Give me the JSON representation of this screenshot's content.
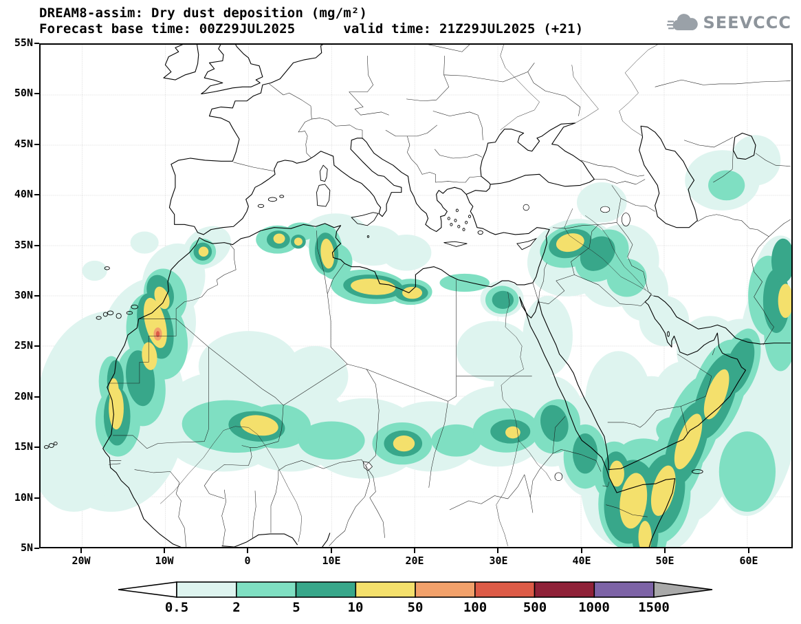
{
  "header": {
    "title": "DREAM8-assim: Dry dust deposition (mg/m²)",
    "subtitle": "Forecast base time: 00Z29JUL2025      valid time: 21Z29JUL2025 (+21)",
    "logo_text": "SEEVCCC"
  },
  "chart_data": {
    "type": "heatmap",
    "subtype": "filled-contour-geographic-map",
    "title": "DREAM8-assim: Dry dust deposition (mg/m²)",
    "model": "DREAM8-assim",
    "variable": "Dry dust deposition",
    "units": "mg/m²",
    "base_time": "00Z29JUL2025",
    "valid_time": "21Z29JUL2025 (+21)",
    "forecast_hour": 21,
    "projection": "equirectangular",
    "lon_range": [
      -25,
      65.3
    ],
    "lat_range": [
      5,
      55
    ],
    "grid": true,
    "x_ticks": [
      "20W",
      "10W",
      "0",
      "10E",
      "20E",
      "30E",
      "40E",
      "50E",
      "60E"
    ],
    "y_ticks": [
      "55N",
      "50N",
      "45N",
      "40N",
      "35N",
      "30N",
      "25N",
      "20N",
      "15N",
      "10N",
      "5N"
    ],
    "grid_lons": [
      -20,
      -10,
      0,
      10,
      20,
      30,
      40,
      50,
      60
    ],
    "grid_lats": [
      10,
      15,
      20,
      25,
      30,
      35,
      40,
      45,
      50
    ],
    "legend": {
      "position": "bottom",
      "labels": [
        "0.5",
        "2",
        "5",
        "10",
        "50",
        "100",
        "500",
        "1000",
        "1500"
      ],
      "levels": [
        0.5,
        2,
        5,
        10,
        50,
        100,
        500,
        1000,
        1500
      ],
      "colors": [
        "#ffffff",
        "#def4ef",
        "#7fdfc2",
        "#38a78a",
        "#f4e06c",
        "#f2a16b",
        "#dd5b47",
        "#8f2138",
        "#7d63a6",
        "#a9a9a9"
      ]
    },
    "features": [
      {
        "area": "Atlantic off NW Africa (out to ~25W, 8–27N)",
        "level": "0.5–2 mg/m²"
      },
      {
        "area": "Western Sahara / Morocco coastal belt (20–31N)",
        "level": "10–50 mg/m², local 50–500 spot near 26N 11W"
      },
      {
        "area": "Mauritania–Senegal coast (17–21N)",
        "level": "10–50 mg/m²"
      },
      {
        "area": "Sahel band 13–19N (Mali–Niger–Chad–Sudan)",
        "level": "2–50 mg/m²"
      },
      {
        "area": "Northern Algeria and Tunisia",
        "level": "2–50 mg/m²"
      },
      {
        "area": "Libyan coast / Gulf of Sidra",
        "level": "5–50 mg/m²"
      },
      {
        "area": "Nile delta (Cairo)",
        "level": "2–10 mg/m²"
      },
      {
        "area": "Syria – northern Iraq band near 35N",
        "level": "2–50 mg/m²"
      },
      {
        "area": "Southern Red Sea / Eritrea / Djibouti",
        "level": "2–50 mg/m²"
      },
      {
        "area": "Horn of Africa and Somali coast",
        "level": "5–50 mg/m²"
      },
      {
        "area": "NW Arabian Sea diagonal band up to 25N",
        "level": "2–50 mg/m²"
      },
      {
        "area": "SE Caspian / Turkmenistan",
        "level": "0.5–5 mg/m²"
      },
      {
        "area": "Eastern edge 62–65E, 25–35N",
        "level": "2–50 mg/m²"
      }
    ],
    "contours": {
      "c05": [
        [
          -16.5,
          18.5,
          9,
          10,
          0
        ],
        [
          -21,
          13.5,
          5,
          5,
          0
        ],
        [
          -12,
          26.5,
          6,
          5,
          -35
        ],
        [
          -9,
          31.5,
          4,
          3.5,
          -40
        ],
        [
          -5,
          34.8,
          3,
          2,
          -20
        ],
        [
          -3,
          17.5,
          8,
          5,
          0
        ],
        [
          5,
          17,
          7,
          4.5,
          0
        ],
        [
          14,
          15.8,
          7,
          4,
          0
        ],
        [
          22,
          16,
          6,
          3.5,
          0
        ],
        [
          30,
          17,
          6,
          4,
          0
        ],
        [
          0,
          23,
          6,
          3.5,
          0
        ],
        [
          8,
          22,
          4,
          3,
          0
        ],
        [
          36.5,
          17.5,
          4,
          4.5,
          0
        ],
        [
          41,
          15,
          4,
          5,
          0
        ],
        [
          45,
          11,
          5,
          6,
          0
        ],
        [
          50,
          11.5,
          5,
          7,
          0
        ],
        [
          54,
          15,
          5,
          8,
          20
        ],
        [
          57.5,
          20,
          5,
          8,
          20
        ],
        [
          61,
          17,
          5,
          9,
          10
        ],
        [
          63,
          24,
          4,
          8,
          0
        ],
        [
          64,
          30,
          3.5,
          6,
          0
        ],
        [
          44.5,
          19.5,
          4,
          5,
          0
        ],
        [
          48.5,
          18,
          4,
          4,
          0
        ],
        [
          52.5,
          19.5,
          4,
          4,
          0
        ],
        [
          55.5,
          24.5,
          4,
          3.5,
          0
        ],
        [
          39,
          33.8,
          5.5,
          3.8,
          -10
        ],
        [
          44.5,
          33,
          5,
          4,
          -20
        ],
        [
          47.5,
          30.5,
          3,
          3,
          0
        ],
        [
          10.5,
          36,
          4,
          2.2,
          0
        ],
        [
          15,
          35,
          3.5,
          2,
          0
        ],
        [
          19,
          34.3,
          3,
          1.8,
          0
        ],
        [
          -12.5,
          35.3,
          1.7,
          1.1,
          0
        ],
        [
          -18.5,
          32.5,
          1.5,
          1,
          0
        ],
        [
          29.5,
          24.5,
          4.5,
          3,
          0
        ],
        [
          33,
          21,
          3.5,
          3,
          0
        ],
        [
          42.5,
          39.3,
          3,
          2,
          0
        ],
        [
          57,
          41.5,
          4.5,
          3,
          0
        ],
        [
          61,
          43.5,
          3,
          2.5,
          0
        ],
        [
          30.5,
          29.7,
          2.6,
          1.8,
          0
        ],
        [
          36,
          26,
          3,
          4,
          0
        ],
        [
          50,
          27.5,
          3,
          2.5,
          0
        ]
      ],
      "c2": [
        [
          -11,
          26,
          3.5,
          4.5,
          -25
        ],
        [
          -10,
          30,
          2.5,
          2.8,
          -35
        ],
        [
          -13,
          21,
          3,
          4,
          -10
        ],
        [
          -15.7,
          17.5,
          2.7,
          3.5,
          0
        ],
        [
          -2,
          17,
          6,
          2.6,
          3
        ],
        [
          3.5,
          17,
          4,
          2.2,
          0
        ],
        [
          10,
          15.6,
          4,
          1.9,
          0
        ],
        [
          18.5,
          15.3,
          3.6,
          2.1,
          0
        ],
        [
          25,
          15.6,
          3,
          1.6,
          0
        ],
        [
          31,
          16.6,
          4,
          2.2,
          0
        ],
        [
          37,
          17,
          3,
          2.6,
          -30
        ],
        [
          40.5,
          14,
          2.6,
          3.2,
          0
        ],
        [
          44,
          12.5,
          2.6,
          3,
          0
        ],
        [
          46.5,
          9.5,
          4.4,
          5,
          10
        ],
        [
          49.5,
          9.8,
          3.6,
          4.6,
          15
        ],
        [
          51.5,
          13.5,
          3,
          5,
          25
        ],
        [
          53.5,
          17,
          3,
          5.5,
          25
        ],
        [
          56.5,
          20.5,
          3,
          5.5,
          25
        ],
        [
          59,
          23,
          2.2,
          4,
          25
        ],
        [
          47.5,
          14.2,
          3,
          1.6,
          0
        ],
        [
          52,
          16.3,
          3,
          1.6,
          10
        ],
        [
          -5.5,
          34.4,
          1.6,
          1.3,
          0
        ],
        [
          3.5,
          35.6,
          2.6,
          1.4,
          0
        ],
        [
          6.3,
          36.4,
          1.8,
          0.9,
          0
        ],
        [
          9.3,
          34.6,
          2,
          2.6,
          -10
        ],
        [
          14.5,
          30.9,
          4.6,
          1.7,
          3
        ],
        [
          19.5,
          30.4,
          2.6,
          1.3,
          0
        ],
        [
          10.5,
          33.4,
          2,
          1.8,
          0
        ],
        [
          30.5,
          29.6,
          2,
          1.4,
          0
        ],
        [
          39,
          35,
          4,
          2.1,
          -12
        ],
        [
          42.5,
          34,
          3.4,
          2.4,
          -25
        ],
        [
          45.5,
          31.8,
          2.4,
          1.9,
          0
        ],
        [
          62.5,
          30,
          2.4,
          4,
          0
        ],
        [
          64,
          26.5,
          2,
          4,
          0
        ],
        [
          60,
          12.5,
          3.4,
          4,
          0
        ],
        [
          48,
          6.3,
          2.4,
          3,
          0
        ],
        [
          57.5,
          41,
          2.2,
          1.5,
          0
        ],
        [
          26,
          31.3,
          3,
          0.9,
          0
        ],
        [
          -16.5,
          21.5,
          1.5,
          2.5,
          0
        ]
      ],
      "c5": [
        [
          -11.2,
          27,
          2,
          3.4,
          -20
        ],
        [
          -10.6,
          30.3,
          1.5,
          1.9,
          -35
        ],
        [
          -13,
          21.8,
          1.7,
          2.8,
          -10
        ],
        [
          -15.8,
          18,
          1.6,
          2.9,
          0
        ],
        [
          1,
          17,
          3.4,
          1.5,
          4
        ],
        [
          18.6,
          15.3,
          2.3,
          1.3,
          0
        ],
        [
          9.4,
          34.3,
          1.4,
          2,
          -8
        ],
        [
          3.6,
          35.6,
          1.4,
          0.9,
          0
        ],
        [
          6,
          35.4,
          0.9,
          0.7,
          0
        ],
        [
          15,
          30.9,
          3.6,
          1.2,
          3
        ],
        [
          19.6,
          30.3,
          2,
          0.9,
          0
        ],
        [
          -5.5,
          34.4,
          1.1,
          0.9,
          0
        ],
        [
          38.7,
          35.2,
          2.6,
          1.4,
          -10
        ],
        [
          42,
          34.2,
          2.2,
          1.6,
          -25
        ],
        [
          30.6,
          29.6,
          1.3,
          0.9,
          0
        ],
        [
          46,
          9.5,
          3.2,
          4.2,
          10
        ],
        [
          49.8,
          10.3,
          2.6,
          4,
          15
        ],
        [
          52.7,
          15.2,
          2.1,
          4.6,
          25
        ],
        [
          56.2,
          20,
          2.1,
          4.6,
          25
        ],
        [
          59,
          23,
          1.5,
          3,
          25
        ],
        [
          44.2,
          12.4,
          1.6,
          2.1,
          0
        ],
        [
          47.7,
          6.2,
          1.6,
          2.6,
          0
        ],
        [
          63.5,
          29.5,
          1.6,
          3.2,
          0
        ],
        [
          64.3,
          33.5,
          1.4,
          2.2,
          0
        ],
        [
          31.5,
          16.5,
          2.4,
          1.2,
          0
        ],
        [
          -16,
          21.6,
          1,
          2,
          0
        ],
        [
          36.8,
          17.3,
          1.6,
          1.9,
          -30
        ],
        [
          40.5,
          14.3,
          1.5,
          2,
          0
        ]
      ],
      "c10": [
        [
          -11.2,
          27.3,
          1.2,
          2.6,
          -18
        ],
        [
          -11.9,
          24,
          0.9,
          1.4,
          -10
        ],
        [
          -10.4,
          29.8,
          0.8,
          1.2,
          -30
        ],
        [
          -15.9,
          18.8,
          0.9,
          2.1,
          0
        ],
        [
          -16.2,
          20.6,
          0.6,
          1.2,
          0
        ],
        [
          1.3,
          17.1,
          2.3,
          1.0,
          6
        ],
        [
          18.7,
          15.3,
          1.3,
          0.8,
          0
        ],
        [
          9.5,
          34.2,
          0.8,
          1.5,
          -8
        ],
        [
          15,
          30.9,
          2.7,
          0.8,
          3
        ],
        [
          19.7,
          30.3,
          1.2,
          0.6,
          0
        ],
        [
          -5.4,
          34.4,
          0.6,
          0.5,
          0
        ],
        [
          3.7,
          35.7,
          0.7,
          0.5,
          0
        ],
        [
          6,
          35.4,
          0.5,
          0.4,
          0
        ],
        [
          38.7,
          35.3,
          1.7,
          0.9,
          -8
        ],
        [
          46.3,
          9.6,
          1.6,
          2.8,
          10
        ],
        [
          49.9,
          10.6,
          1.3,
          2.6,
          18
        ],
        [
          52.9,
          15.5,
          1.2,
          3,
          25
        ],
        [
          56.3,
          20.2,
          1.1,
          2.7,
          25
        ],
        [
          44.3,
          12.3,
          0.9,
          1.3,
          0
        ],
        [
          47.7,
          6,
          0.8,
          1.6,
          0
        ],
        [
          64.6,
          29.5,
          0.9,
          1.7,
          0
        ],
        [
          31.8,
          16.4,
          0.9,
          0.6,
          0
        ]
      ],
      "c50": [
        [
          -10.9,
          26.2,
          0.5,
          0.65,
          0
        ]
      ],
      "c100": [
        [
          -10.9,
          26.2,
          0.22,
          0.3,
          0
        ]
      ]
    }
  }
}
